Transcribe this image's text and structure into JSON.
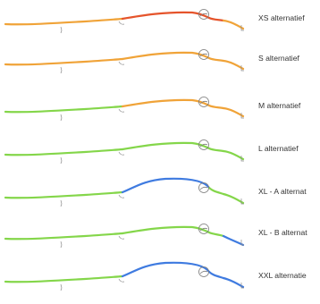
{
  "colors": {
    "red": "#e5542b",
    "orange": "#f0a338",
    "green": "#84d64a",
    "blue": "#3f7be0",
    "marker": "#7a7a7a"
  },
  "rows": [
    {
      "label": "XS alternatief",
      "segments": [
        "orange",
        "red",
        "red",
        "orange"
      ]
    },
    {
      "label": "S alternatief",
      "segments": [
        "orange",
        "orange",
        "orange",
        "orange"
      ]
    },
    {
      "label": "M alternatief",
      "segments": [
        "green",
        "orange",
        "orange",
        "orange"
      ]
    },
    {
      "label": "L alternatief",
      "segments": [
        "green",
        "green",
        "green",
        "green"
      ]
    },
    {
      "label": "XL - A alternat",
      "segments": [
        "green",
        "blue",
        "green",
        "green"
      ]
    },
    {
      "label": "XL - B alternat",
      "segments": [
        "green",
        "green",
        "green",
        "blue"
      ]
    },
    {
      "label": "XXL alternatie",
      "segments": [
        "green",
        "blue",
        "blue",
        "blue"
      ]
    }
  ]
}
